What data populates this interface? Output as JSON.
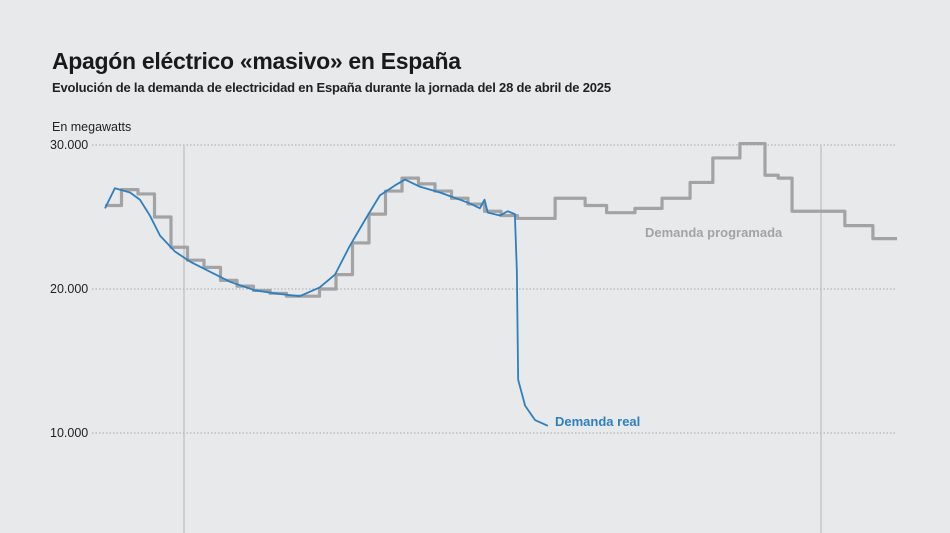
{
  "title": "Apagón eléctrico «masivo» en España",
  "subtitle": "Evolución de la demanda de electricidad en España durante la jornada del 28 de abril de 2025",
  "chart_data": {
    "type": "line",
    "ylabel": "En megawatts",
    "ylim": [
      5000,
      30500
    ],
    "y_ticks": [
      {
        "value": 30000,
        "label": "30.000"
      },
      {
        "value": 20000,
        "label": "20.000"
      },
      {
        "value": 10000,
        "label": "10.000"
      }
    ],
    "xlim": [
      0,
      24
    ],
    "grid": "horizontal dotted",
    "colors": {
      "real": "#2e7fbf",
      "programada": "#a3a3a3",
      "background": "#e8e9eb"
    },
    "series": [
      {
        "name": "Demanda real",
        "style": "line",
        "points": [
          [
            0,
            25600
          ],
          [
            0.3,
            27000
          ],
          [
            0.76,
            26700
          ],
          [
            1.06,
            26200
          ],
          [
            1.36,
            25100
          ],
          [
            1.67,
            23700
          ],
          [
            2.12,
            22600
          ],
          [
            2.58,
            21900
          ],
          [
            3.18,
            21200
          ],
          [
            3.79,
            20500
          ],
          [
            4.55,
            19900
          ],
          [
            5.3,
            19650
          ],
          [
            5.9,
            19500
          ],
          [
            6.5,
            20100
          ],
          [
            6.97,
            21000
          ],
          [
            7.42,
            23000
          ],
          [
            7.88,
            24800
          ],
          [
            8.33,
            26500
          ],
          [
            8.79,
            27200
          ],
          [
            9.09,
            27600
          ],
          [
            9.55,
            27100
          ],
          [
            10.15,
            26700
          ],
          [
            10.76,
            26200
          ],
          [
            11.1,
            25900
          ],
          [
            11.36,
            25600
          ],
          [
            11.5,
            26200
          ],
          [
            11.6,
            25300
          ],
          [
            11.97,
            25100
          ],
          [
            12.2,
            25400
          ],
          [
            12.42,
            25200
          ],
          [
            12.48,
            21300
          ],
          [
            12.52,
            13700
          ],
          [
            12.73,
            11900
          ],
          [
            13.03,
            10900
          ],
          [
            13.42,
            10500
          ]
        ]
      },
      {
        "name": "Demanda programada",
        "style": "step",
        "points": [
          [
            0,
            25800
          ],
          [
            0.5,
            26900
          ],
          [
            1,
            26600
          ],
          [
            1.5,
            25000
          ],
          [
            2,
            22900
          ],
          [
            2.5,
            22000
          ],
          [
            3,
            21500
          ],
          [
            3.5,
            20600
          ],
          [
            4,
            20200
          ],
          [
            4.5,
            19900
          ],
          [
            5,
            19700
          ],
          [
            5.5,
            19500
          ],
          [
            6,
            19500
          ],
          [
            6.5,
            20000
          ],
          [
            7,
            21000
          ],
          [
            7.5,
            23200
          ],
          [
            8,
            25200
          ],
          [
            8.5,
            26800
          ],
          [
            9,
            27700
          ],
          [
            9.5,
            27300
          ],
          [
            10,
            26800
          ],
          [
            10.5,
            26300
          ],
          [
            11,
            25900
          ],
          [
            11.5,
            25400
          ],
          [
            12,
            25100
          ],
          [
            12.5,
            24900
          ],
          [
            13.64,
            26300
          ],
          [
            14.55,
            25800
          ],
          [
            15.2,
            25300
          ],
          [
            16.06,
            25600
          ],
          [
            16.88,
            26300
          ],
          [
            17.73,
            27400
          ],
          [
            18.42,
            29100
          ],
          [
            19.24,
            30100
          ],
          [
            20,
            27900
          ],
          [
            20.4,
            27700
          ],
          [
            20.82,
            25400
          ],
          [
            22.42,
            24400
          ],
          [
            23.27,
            23500
          ],
          [
            24,
            23500
          ]
        ]
      }
    ]
  }
}
